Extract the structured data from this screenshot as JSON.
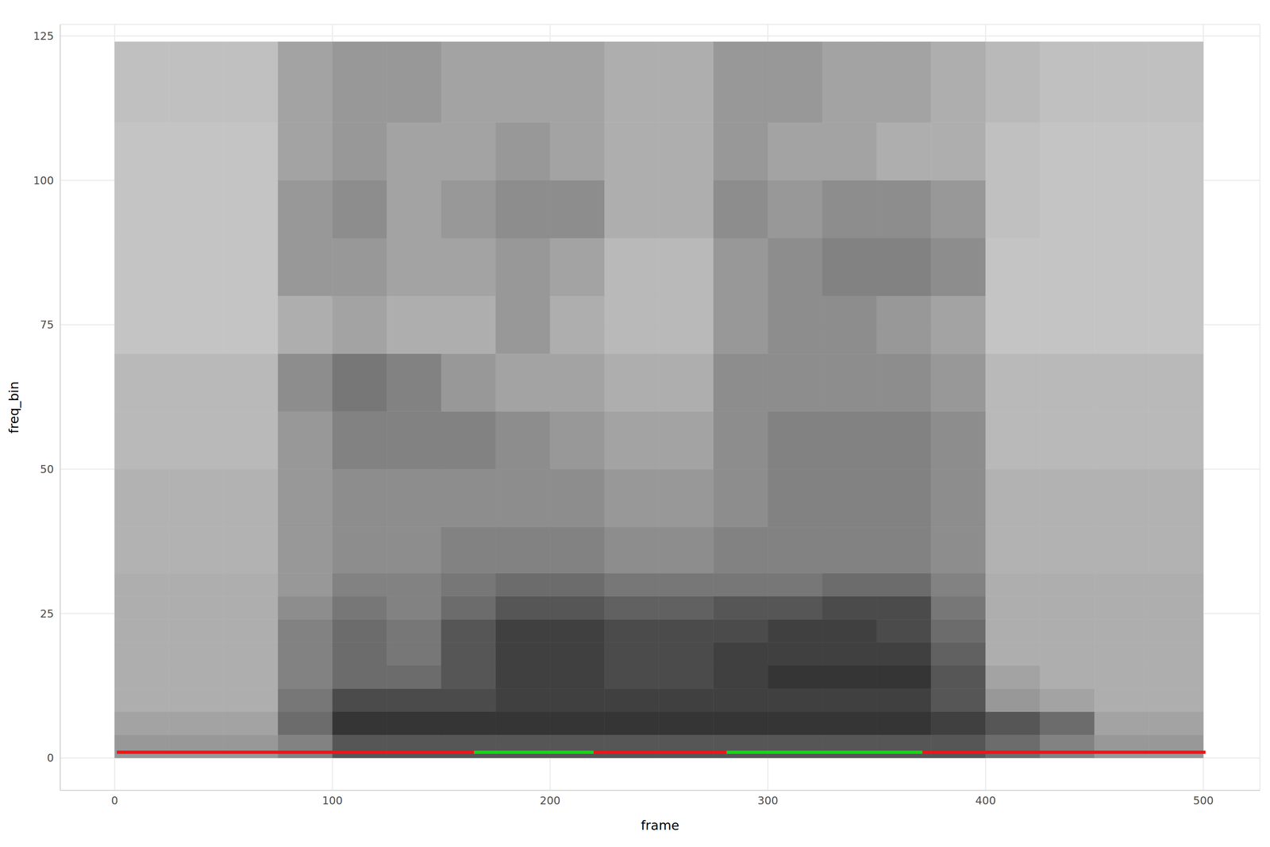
{
  "chart_data": {
    "type": "heatmap",
    "x_label": "frame",
    "y_label": "freq_bin",
    "xlim": [
      -25,
      526
    ],
    "ylim": [
      -5.6,
      127
    ],
    "xticks": [
      0,
      100,
      200,
      300,
      400,
      500
    ],
    "yticks": [
      0,
      25,
      50,
      75,
      100,
      125
    ],
    "grid": true,
    "heatmap": {
      "x_edges": [
        0,
        25,
        50,
        75,
        100,
        125,
        150,
        175,
        200,
        225,
        250,
        275,
        300,
        325,
        350,
        375,
        400,
        425,
        450,
        475,
        500
      ],
      "y_edges": [
        0,
        4,
        8,
        12,
        16,
        20,
        24,
        28,
        32,
        40,
        50,
        60,
        70,
        80,
        90,
        100,
        110,
        124
      ],
      "zlim": [
        0,
        1
      ],
      "cells": [
        [
          0.4,
          0.4,
          0.4,
          0.5,
          0.7,
          0.7,
          0.7,
          0.7,
          0.7,
          0.7,
          0.7,
          0.7,
          0.7,
          0.7,
          0.7,
          0.7,
          0.6,
          0.5,
          0.4,
          0.4
        ],
        [
          0.35,
          0.35,
          0.35,
          0.6,
          0.85,
          0.85,
          0.85,
          0.85,
          0.85,
          0.85,
          0.85,
          0.85,
          0.85,
          0.85,
          0.85,
          0.8,
          0.7,
          0.6,
          0.35,
          0.35
        ],
        [
          0.3,
          0.3,
          0.3,
          0.55,
          0.75,
          0.75,
          0.75,
          0.8,
          0.8,
          0.8,
          0.8,
          0.8,
          0.8,
          0.8,
          0.8,
          0.7,
          0.4,
          0.35,
          0.3,
          0.3
        ],
        [
          0.3,
          0.3,
          0.3,
          0.5,
          0.6,
          0.6,
          0.7,
          0.8,
          0.8,
          0.75,
          0.75,
          0.8,
          0.85,
          0.85,
          0.85,
          0.7,
          0.35,
          0.3,
          0.3,
          0.3
        ],
        [
          0.3,
          0.3,
          0.3,
          0.5,
          0.6,
          0.55,
          0.7,
          0.8,
          0.8,
          0.75,
          0.75,
          0.8,
          0.8,
          0.8,
          0.8,
          0.65,
          0.3,
          0.3,
          0.3,
          0.3
        ],
        [
          0.3,
          0.3,
          0.3,
          0.5,
          0.6,
          0.55,
          0.7,
          0.8,
          0.8,
          0.75,
          0.75,
          0.75,
          0.8,
          0.8,
          0.75,
          0.6,
          0.3,
          0.3,
          0.3,
          0.3
        ],
        [
          0.3,
          0.3,
          0.3,
          0.45,
          0.55,
          0.5,
          0.6,
          0.7,
          0.7,
          0.65,
          0.65,
          0.7,
          0.7,
          0.75,
          0.75,
          0.55,
          0.3,
          0.3,
          0.3,
          0.3
        ],
        [
          0.3,
          0.3,
          0.3,
          0.4,
          0.5,
          0.5,
          0.55,
          0.6,
          0.6,
          0.55,
          0.55,
          0.55,
          0.55,
          0.6,
          0.6,
          0.5,
          0.3,
          0.3,
          0.3,
          0.3
        ],
        [
          0.28,
          0.28,
          0.28,
          0.4,
          0.45,
          0.45,
          0.5,
          0.5,
          0.5,
          0.45,
          0.45,
          0.5,
          0.5,
          0.5,
          0.5,
          0.45,
          0.28,
          0.28,
          0.28,
          0.28
        ],
        [
          0.28,
          0.28,
          0.28,
          0.4,
          0.45,
          0.45,
          0.45,
          0.45,
          0.45,
          0.4,
          0.4,
          0.45,
          0.5,
          0.5,
          0.5,
          0.45,
          0.28,
          0.28,
          0.28,
          0.28
        ],
        [
          0.25,
          0.25,
          0.25,
          0.4,
          0.5,
          0.5,
          0.5,
          0.45,
          0.4,
          0.35,
          0.35,
          0.45,
          0.5,
          0.5,
          0.5,
          0.45,
          0.25,
          0.25,
          0.25,
          0.25
        ],
        [
          0.25,
          0.25,
          0.25,
          0.45,
          0.55,
          0.5,
          0.4,
          0.35,
          0.35,
          0.3,
          0.3,
          0.45,
          0.45,
          0.45,
          0.45,
          0.4,
          0.25,
          0.25,
          0.25,
          0.25
        ],
        [
          0.2,
          0.2,
          0.2,
          0.3,
          0.35,
          0.3,
          0.3,
          0.4,
          0.3,
          0.25,
          0.25,
          0.4,
          0.45,
          0.45,
          0.4,
          0.35,
          0.2,
          0.2,
          0.2,
          0.2
        ],
        [
          0.2,
          0.2,
          0.2,
          0.4,
          0.4,
          0.35,
          0.35,
          0.4,
          0.35,
          0.25,
          0.25,
          0.4,
          0.45,
          0.5,
          0.5,
          0.45,
          0.2,
          0.2,
          0.2,
          0.2
        ],
        [
          0.2,
          0.2,
          0.2,
          0.4,
          0.45,
          0.35,
          0.4,
          0.45,
          0.45,
          0.3,
          0.3,
          0.45,
          0.4,
          0.45,
          0.45,
          0.4,
          0.22,
          0.2,
          0.2,
          0.2
        ],
        [
          0.2,
          0.2,
          0.2,
          0.35,
          0.4,
          0.35,
          0.35,
          0.4,
          0.35,
          0.3,
          0.3,
          0.4,
          0.35,
          0.35,
          0.3,
          0.3,
          0.22,
          0.2,
          0.2,
          0.2
        ],
        [
          0.22,
          0.22,
          0.22,
          0.35,
          0.4,
          0.4,
          0.35,
          0.35,
          0.35,
          0.3,
          0.3,
          0.4,
          0.4,
          0.35,
          0.35,
          0.3,
          0.25,
          0.22,
          0.22,
          0.22
        ]
      ]
    },
    "segments": {
      "y": 1,
      "items": [
        {
          "start": 1,
          "end": 165,
          "color": "#e41a1c"
        },
        {
          "start": 165,
          "end": 220,
          "color": "#1fd11f"
        },
        {
          "start": 220,
          "end": 281,
          "color": "#e41a1c"
        },
        {
          "start": 281,
          "end": 371,
          "color": "#1fd11f"
        },
        {
          "start": 371,
          "end": 501,
          "color": "#e41a1c"
        }
      ]
    }
  }
}
